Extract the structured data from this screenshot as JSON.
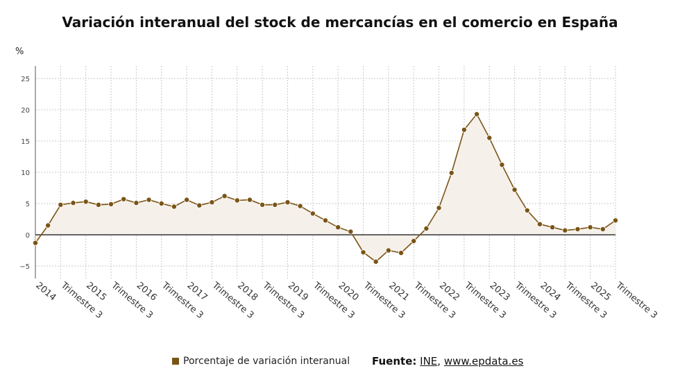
{
  "title": "Variación interanual del stock de mercancías en el comercio en España",
  "unit": "%",
  "legend_label": "Porcentaje de variación interanual",
  "source": {
    "label": "Fuente:",
    "link1": "INE",
    "sep": ",",
    "link2": "www.epdata.es"
  },
  "colors": {
    "series": "#7a5416",
    "fill": "#f5f0ea",
    "grid": "#c8c8c8",
    "zero": "#333333"
  },
  "chart_data": {
    "type": "area",
    "ylim": [
      -7,
      27
    ],
    "yticks": [
      -5,
      0,
      5,
      10,
      15,
      20,
      25
    ],
    "grid": true,
    "legend": "bottom",
    "x_tick_labels": [
      "2014",
      "Trimestre 3",
      "2015",
      "Trimestre 3",
      "2016",
      "Trimestre 3",
      "2017",
      "Trimestre 3",
      "2018",
      "Trimestre 3",
      "2019",
      "Trimestre 3",
      "2020",
      "Trimestre 3",
      "2021",
      "Trimestre 3",
      "2022",
      "Trimestre 3",
      "2023",
      "Trimestre 3",
      "2024",
      "Trimestre 3",
      "2025",
      "Trimestre 3"
    ],
    "series": [
      {
        "name": "Porcentaje de variación interanual",
        "values": [
          -1.3,
          1.5,
          4.8,
          5.1,
          5.3,
          4.8,
          4.9,
          5.7,
          5.1,
          5.6,
          5.0,
          4.5,
          5.6,
          4.7,
          5.2,
          6.2,
          5.5,
          5.6,
          4.8,
          4.8,
          5.2,
          4.6,
          3.4,
          2.3,
          1.2,
          0.5,
          -2.8,
          -4.3,
          -2.5,
          -2.9,
          -1.0,
          1.0,
          4.3,
          9.9,
          16.8,
          19.3,
          15.5,
          11.2,
          7.2,
          3.9,
          1.7,
          1.2,
          0.7,
          0.9,
          1.2,
          0.9,
          2.3
        ]
      }
    ]
  }
}
